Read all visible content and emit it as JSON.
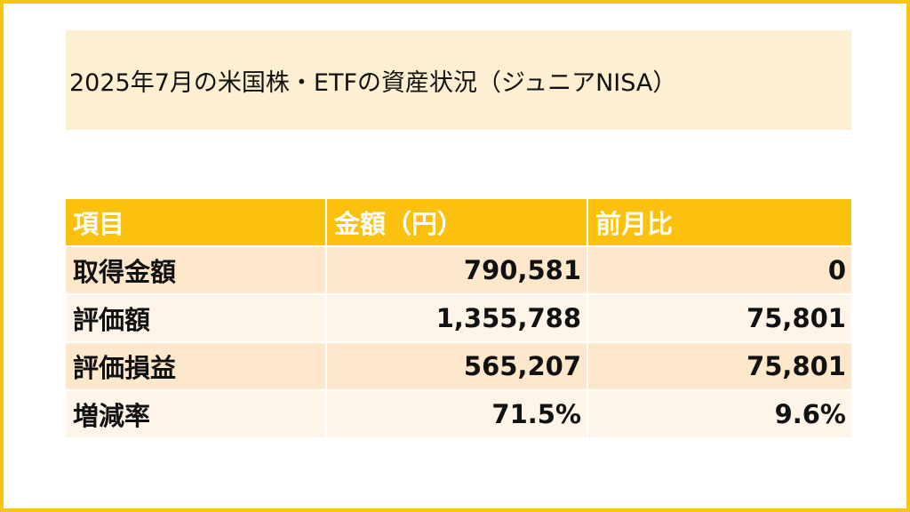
{
  "title": "2025年7月の米国株・ETFの資産状況（ジュニアNISA）",
  "colors": {
    "border": "#f5c518",
    "title_background": "#fdefd2",
    "header_background": "#fcc10f",
    "row_odd": "#fde8cc",
    "row_even": "#fef4e8"
  },
  "table": {
    "headers": [
      "項目",
      "金額（円）",
      "前月比"
    ],
    "rows": [
      [
        "取得金額",
        "790,581",
        "0"
      ],
      [
        "評価額",
        "1,355,788",
        "75,801"
      ],
      [
        "評価損益",
        "565,207",
        "75,801"
      ],
      [
        "増減率",
        "71.5%",
        "9.6%"
      ]
    ]
  }
}
